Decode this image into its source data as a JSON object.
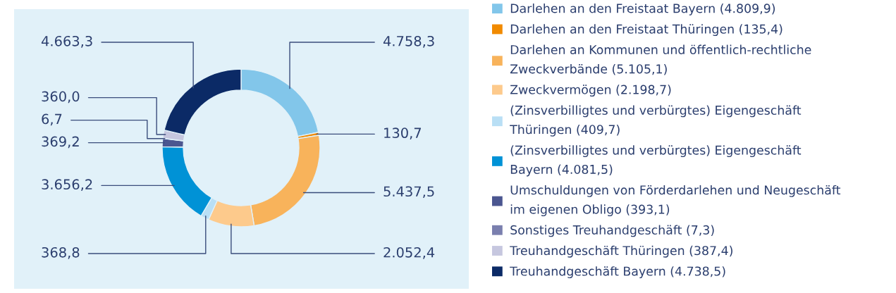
{
  "chart_data": {
    "type": "donut",
    "categories": [
      "Darlehen an den Freistaat Bayern (4.809,9)",
      "Darlehen an den Freistaat Thüringen (135,4)",
      "Darlehen an Kommunen und öffentlich-rechtliche Zweckverbände (5.105,1)",
      "Zweckvermögen (2.198,7)",
      "(Zinsverbilligtes und verbürgtes) Eigengeschäft Thüringen (409,7)",
      "(Zinsverbilligtes und verbürgtes) Eigengeschäft Bayern (4.081,5)",
      "Umschuldungen von Förderdarlehen und Neugeschäft im eigenen Obligo (393,1)",
      "Sonstiges Treuhandgeschäft (7,3)",
      "Treuhandgeschäft Thüringen (387,4)",
      "Treuhandgeschäft Bayern (4.738,5)"
    ],
    "values": [
      4758.3,
      130.7,
      5437.5,
      2052.4,
      368.8,
      3656.2,
      369.2,
      6.7,
      360.0,
      4663.3
    ],
    "value_labels": [
      "4.758,3",
      "130,7",
      "5.437,5",
      "2.052,4",
      "368,8",
      "3.656,2",
      "369,2",
      "6,7",
      "360,0",
      "4.663,3"
    ],
    "colors": [
      "#82c6ea",
      "#f18a00",
      "#f8b35b",
      "#fdca8c",
      "#b9dff5",
      "#0092d6",
      "#4b5690",
      "#7a7fae",
      "#c6c7df",
      "#0b2a66"
    ],
    "legend": "right"
  }
}
